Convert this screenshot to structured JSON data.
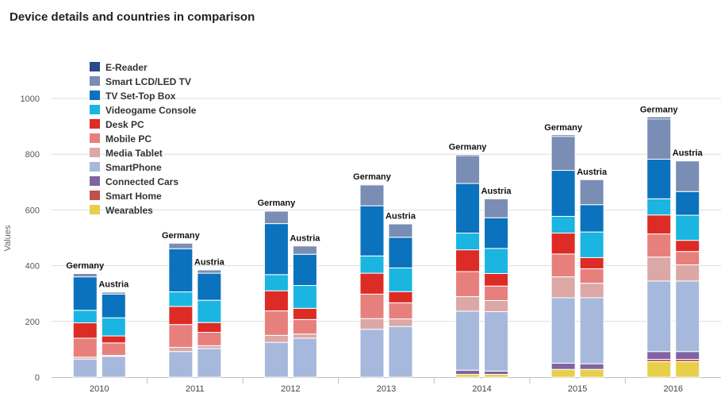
{
  "chart_data": {
    "type": "bar",
    "stacked": true,
    "title": "Device details and countries in comparison",
    "ylabel": "Values",
    "xlabel": "",
    "ylim": [
      0,
      1000
    ],
    "yticks": [
      0,
      200,
      400,
      600,
      800,
      1000
    ],
    "grid": true,
    "legend_position": "top-left",
    "categories": [
      "2010",
      "2011",
      "2012",
      "2013",
      "2014",
      "2015",
      "2016"
    ],
    "groups": [
      "Germany",
      "Austria"
    ],
    "series": [
      {
        "name": "Wearables",
        "color": "#e8cf4a",
        "Germany": [
          0,
          0,
          0,
          0,
          10,
          28,
          56
        ],
        "Austria": [
          0,
          0,
          0,
          0,
          10,
          28,
          56
        ]
      },
      {
        "name": "Smart Home",
        "color": "#c0504d",
        "Germany": [
          0,
          0,
          0,
          0,
          0,
          0,
          8
        ],
        "Austria": [
          0,
          0,
          0,
          0,
          0,
          0,
          8
        ]
      },
      {
        "name": "Connected Cars",
        "color": "#8064a2",
        "Germany": [
          0,
          0,
          0,
          0,
          15,
          22,
          28
        ],
        "Austria": [
          0,
          0,
          0,
          0,
          12,
          20,
          28
        ]
      },
      {
        "name": "SmartPhone",
        "color": "#a6b9dc",
        "Germany": [
          65,
          92,
          125,
          172,
          212,
          235,
          253
        ],
        "Austria": [
          75,
          103,
          140,
          182,
          213,
          237,
          253
        ]
      },
      {
        "name": "Media Tablet",
        "color": "#dba8a6",
        "Germany": [
          7,
          15,
          25,
          38,
          52,
          75,
          86
        ],
        "Austria": [
          3,
          10,
          15,
          27,
          40,
          52,
          58
        ]
      },
      {
        "name": "Mobile PC",
        "color": "#e7807c",
        "Germany": [
          68,
          82,
          88,
          88,
          90,
          82,
          83
        ],
        "Austria": [
          45,
          48,
          52,
          58,
          52,
          52,
          48
        ]
      },
      {
        "name": "Desk PC",
        "color": "#dd2b25",
        "Germany": [
          55,
          65,
          72,
          75,
          78,
          75,
          68
        ],
        "Austria": [
          25,
          35,
          40,
          40,
          45,
          40,
          40
        ]
      },
      {
        "name": "Videogame Console",
        "color": "#1bb5e1",
        "Germany": [
          45,
          52,
          58,
          62,
          60,
          60,
          58
        ],
        "Austria": [
          65,
          80,
          82,
          85,
          90,
          92,
          90
        ]
      },
      {
        "name": "TV Set-Top Box",
        "color": "#0b72bd",
        "Germany": [
          120,
          155,
          183,
          180,
          178,
          165,
          142
        ],
        "Austria": [
          85,
          97,
          112,
          110,
          110,
          98,
          85
        ]
      },
      {
        "name": "Smart LCD/LED TV",
        "color": "#7a8db4",
        "Germany": [
          12,
          20,
          45,
          75,
          100,
          122,
          145
        ],
        "Austria": [
          7,
          12,
          30,
          48,
          68,
          90,
          110
        ]
      },
      {
        "name": "E-Reader",
        "color": "#274a8a",
        "Germany": [
          1,
          1,
          2,
          3,
          4,
          5,
          6
        ],
        "Austria": [
          1,
          1,
          1,
          1,
          1,
          1,
          2
        ]
      }
    ],
    "legend_order": [
      "E-Reader",
      "Smart LCD/LED TV",
      "TV Set-Top Box",
      "Videogame Console",
      "Desk PC",
      "Mobile PC",
      "Media Tablet",
      "SmartPhone",
      "Connected Cars",
      "Smart Home",
      "Wearables"
    ]
  }
}
